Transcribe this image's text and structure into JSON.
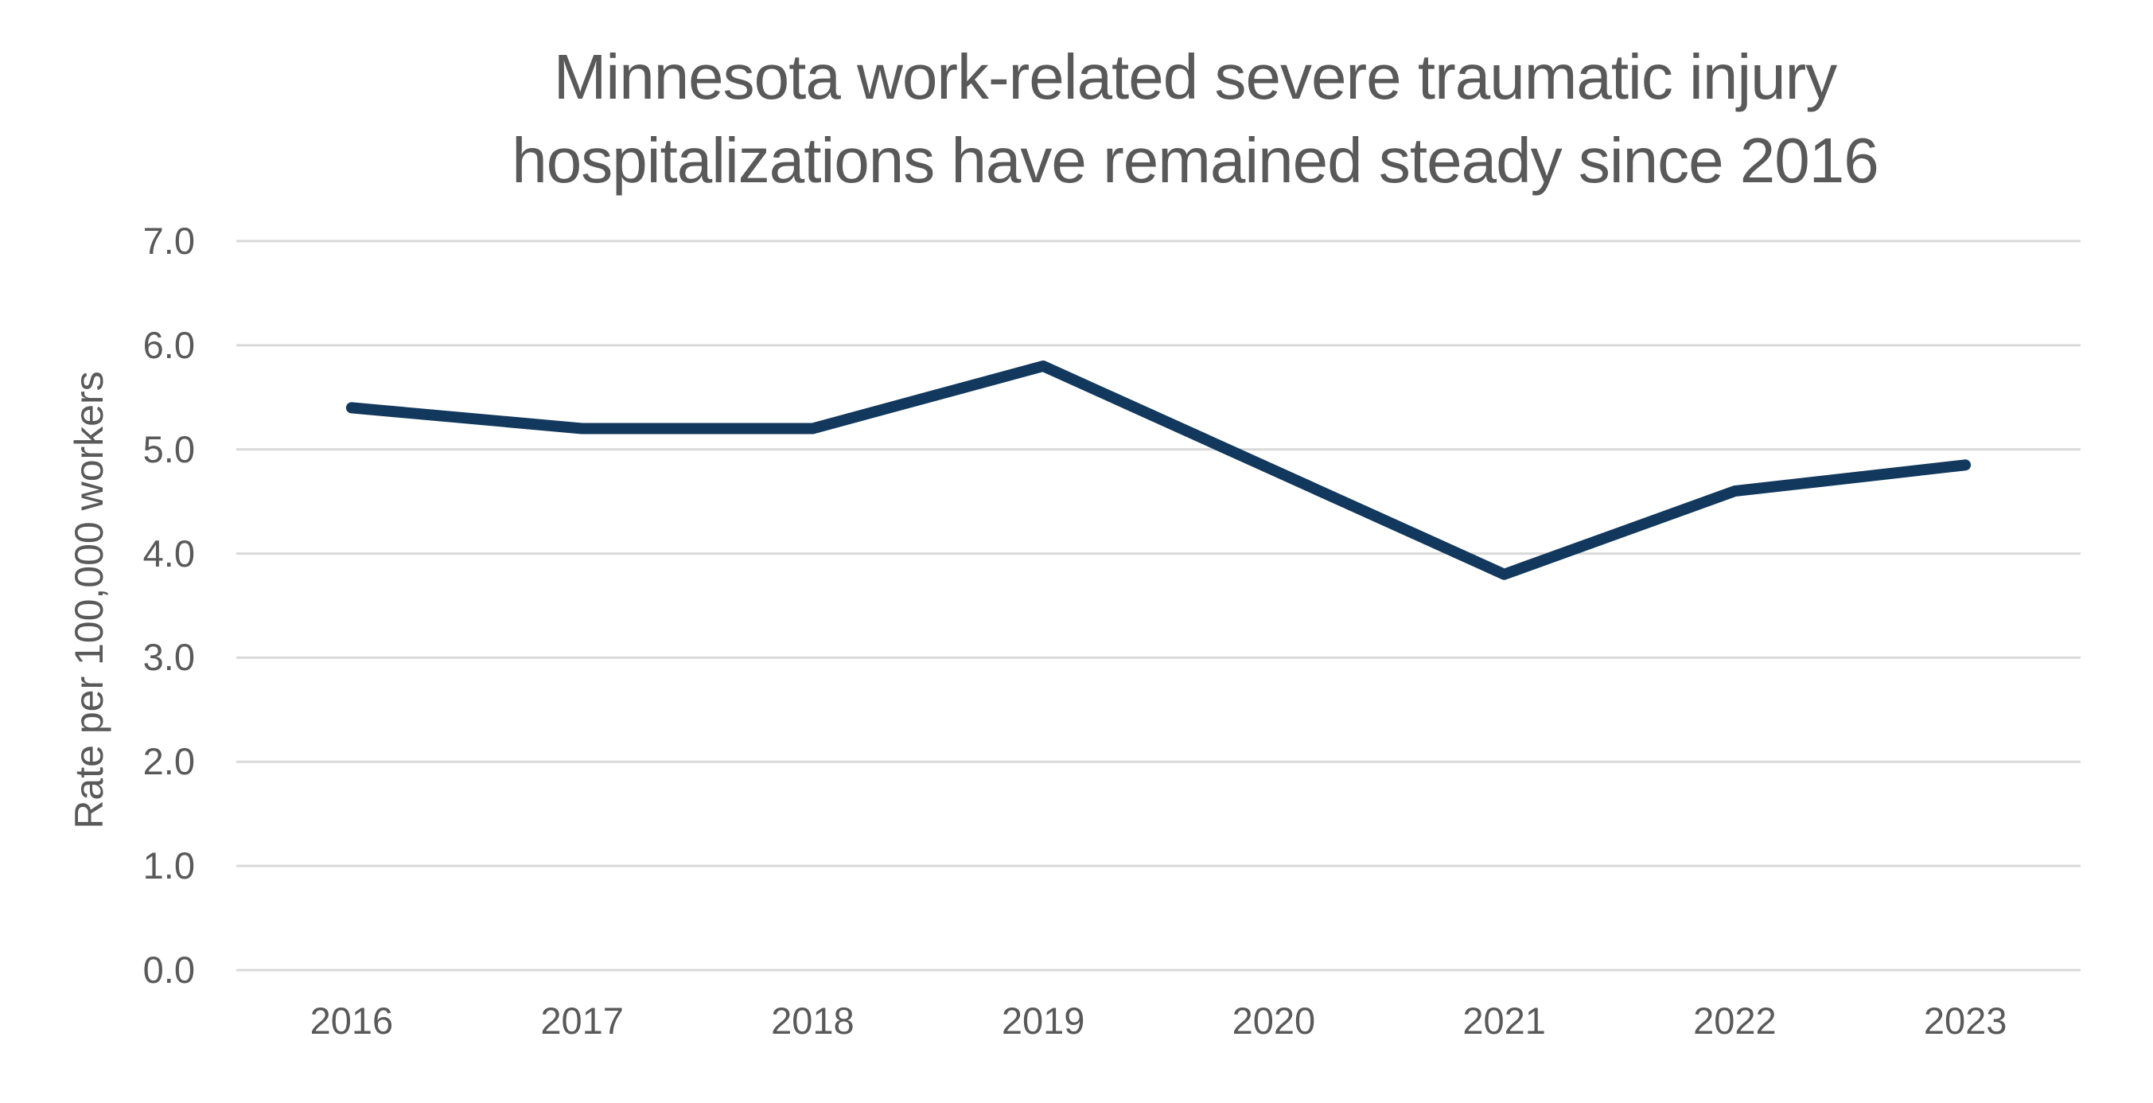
{
  "chart_data": {
    "type": "line",
    "title": "Minnesota work-related severe traumatic injury hospitalizations have remained steady since 2016",
    "title_lines": [
      "Minnesota work-related severe traumatic injury",
      "hospitalizations have remained steady since 2016"
    ],
    "ylabel": "Rate per 100,000 workers",
    "xlabel": "",
    "categories": [
      "2016",
      "2017",
      "2018",
      "2019",
      "2020",
      "2021",
      "2022",
      "2023"
    ],
    "series": [
      {
        "name": "Rate per 100,000 workers",
        "values": [
          5.4,
          5.2,
          5.2,
          5.8,
          4.8,
          3.8,
          4.6,
          4.85
        ]
      }
    ],
    "ylim": [
      0.0,
      7.0
    ],
    "ytick_step": 1.0,
    "ytick_labels": [
      "0.0",
      "1.0",
      "2.0",
      "3.0",
      "4.0",
      "5.0",
      "6.0",
      "7.0"
    ],
    "grid": "horizontal-only",
    "legend": "none",
    "colors": {
      "line": "#12395D",
      "grid": "#D9D9D9",
      "text": "#595959",
      "background": "#FFFFFF"
    }
  }
}
